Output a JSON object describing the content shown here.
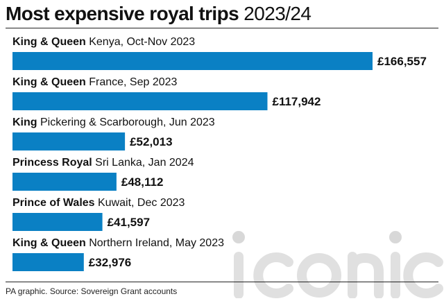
{
  "header": {
    "title_bold": "Most expensive royal trips",
    "title_light": "2023/24"
  },
  "footer": {
    "source": "PA graphic. Source: Sovereign Grant accounts"
  },
  "watermark": {
    "text": "iconic"
  },
  "colors": {
    "bar": "#0a80c4",
    "text": "#111111",
    "watermark": "#c8c8c8"
  },
  "chart_data": {
    "type": "bar",
    "orientation": "horizontal",
    "title": "Most expensive royal trips 2023/24",
    "categories": [
      {
        "who": "King & Queen",
        "where": "Kenya, Oct-Nov 2023"
      },
      {
        "who": "King & Queen",
        "where": "France, Sep 2023"
      },
      {
        "who": "King",
        "where": "Pickering & Scarborough, Jun 2023"
      },
      {
        "who": "Princess Royal",
        "where": "Sri Lanka, Jan 2024"
      },
      {
        "who": "Prince of Wales",
        "where": "Kuwait, Dec 2023"
      },
      {
        "who": "King & Queen",
        "where": "Northern Ireland, May 2023"
      }
    ],
    "values": [
      166557,
      117942,
      52013,
      48112,
      41597,
      32976
    ],
    "value_labels": [
      "£166,557",
      "£117,942",
      "£52,013",
      "£48,112",
      "£41,597",
      "£32,976"
    ],
    "xlim": [
      0,
      166557
    ],
    "grid": false,
    "legend": false
  }
}
